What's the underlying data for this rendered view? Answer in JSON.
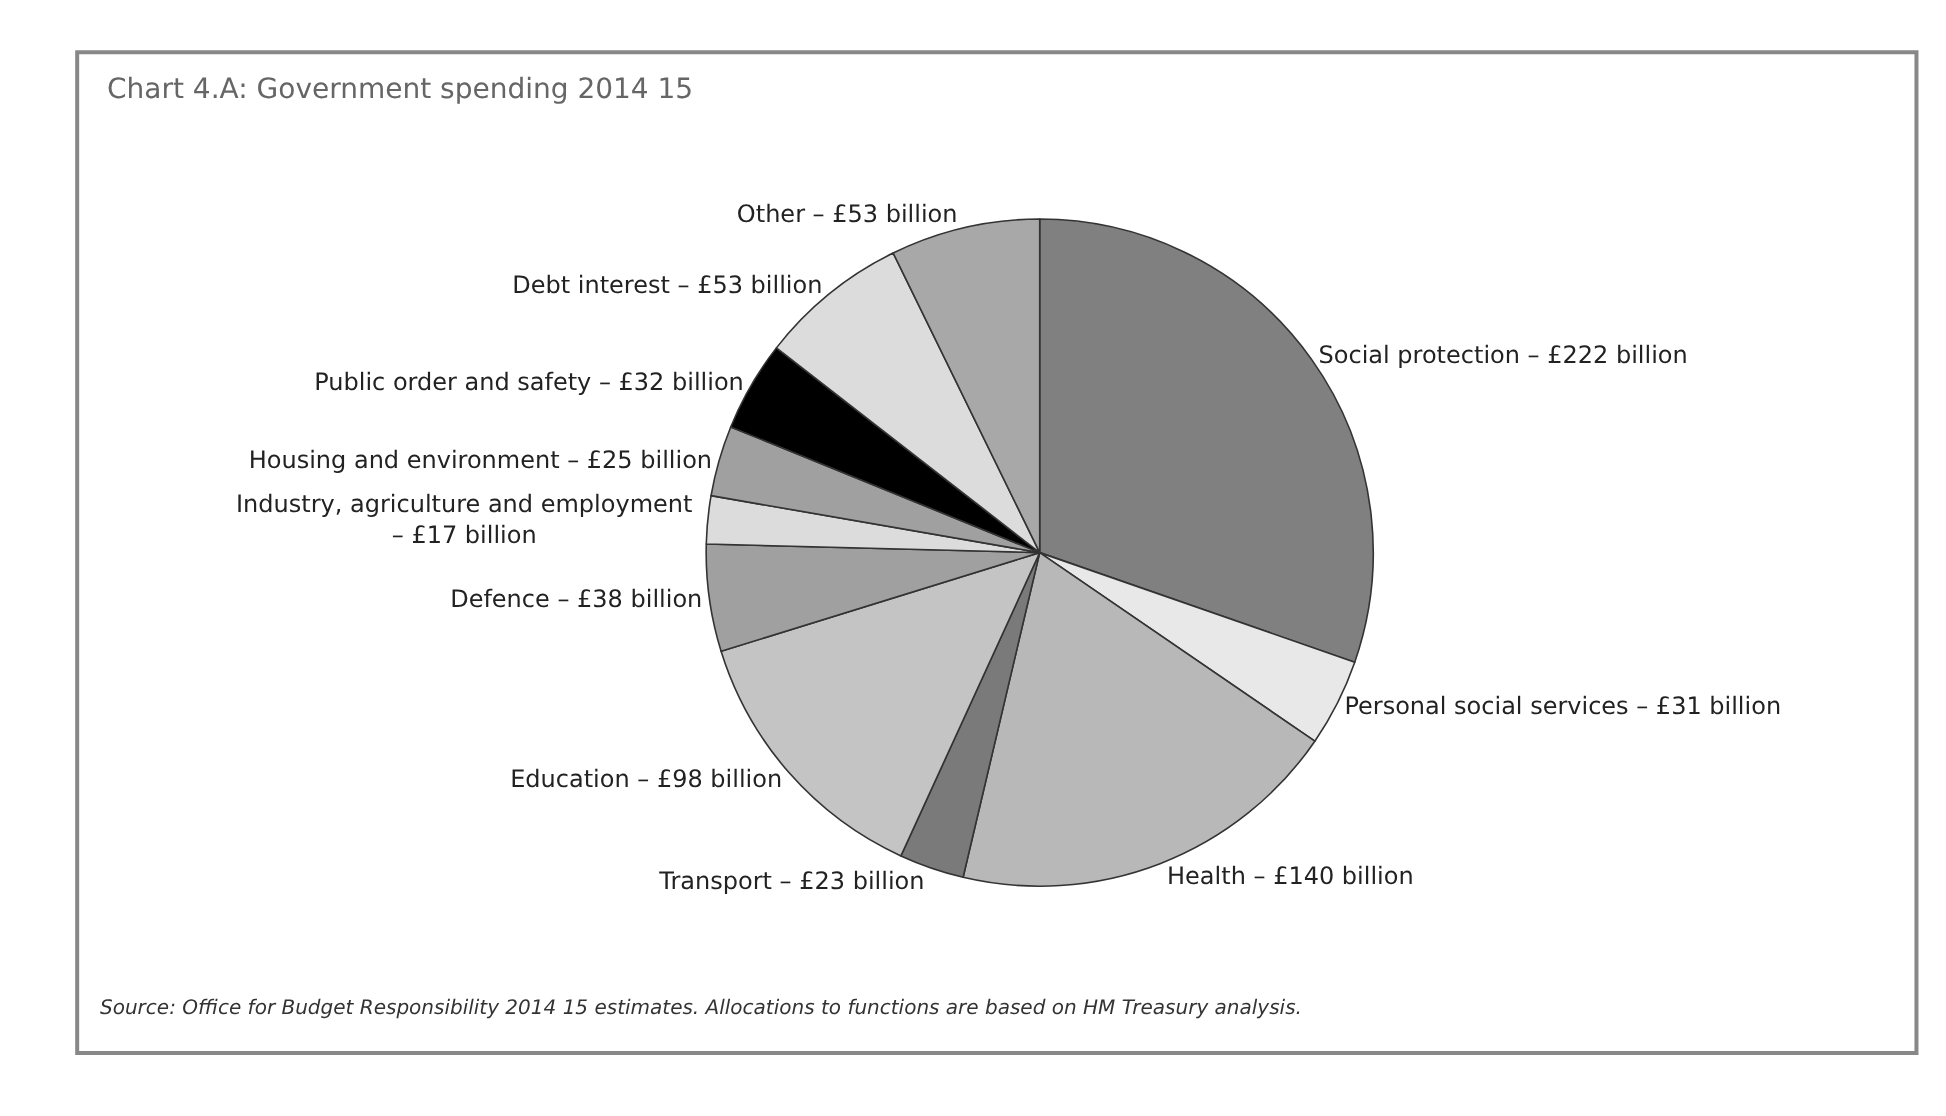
{
  "chart_data": {
    "type": "pie",
    "title": "Chart 4.A: Government spending 2014 15",
    "categories": [
      "Social protection –",
      "Personal social services –",
      "Health –",
      "Transport –",
      "Education –",
      "Defence –",
      "Industry, agriculture and employment\n–",
      "Housing and environment –",
      "Public order and safety –",
      "Debt interest –",
      "Other –"
    ],
    "value_labels": [
      "£222 billion",
      "£31 billion",
      "£140 billion",
      "£23 billion",
      "£98 billion",
      "£38 billion",
      "£17 billion",
      "£25 billion",
      "£32 billion",
      "£53 billion",
      "£53 billion"
    ],
    "values": [
      222,
      31,
      140,
      23,
      98,
      38,
      17,
      25,
      32,
      53,
      53
    ],
    "colors": [
      "#808080",
      "#e8e8e8",
      "#b8b8b8",
      "#7a7a7a",
      "#c4c4c4",
      "#a0a0a0",
      "#dcdcdc",
      "#a0a0a0",
      "#000000",
      "#dcdcdc",
      "#a8a8a8"
    ],
    "annotations": [
      "Source: Office for Budget Responsibility 2014 15 estimates. Allocations to functions are based on HM Treasury analysis."
    ],
    "legend": false
  }
}
